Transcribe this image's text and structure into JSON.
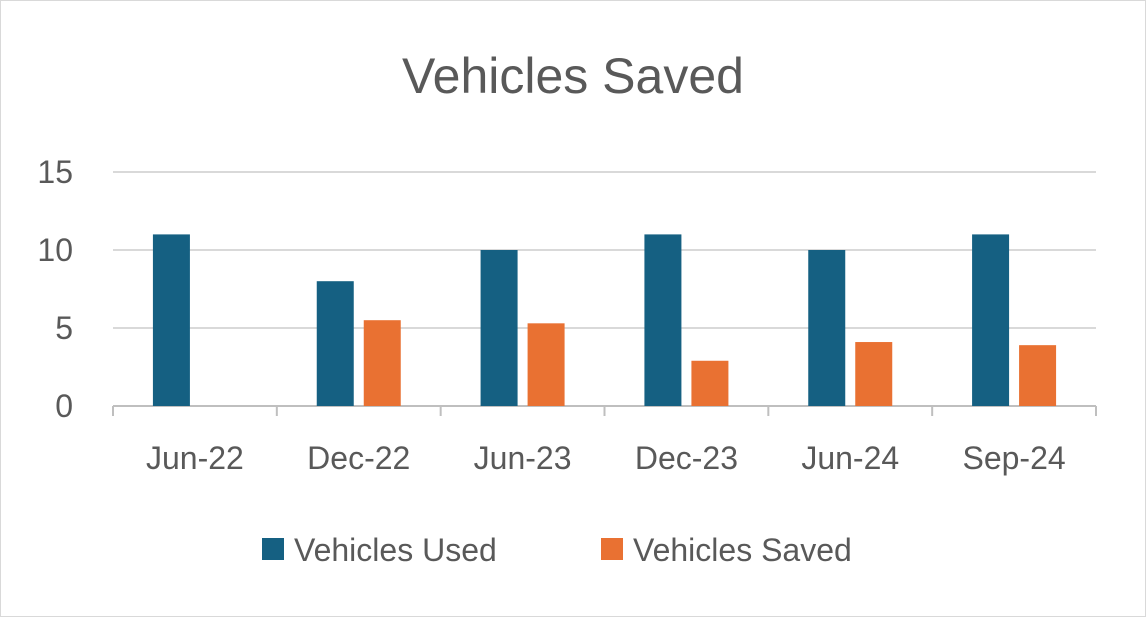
{
  "chart_data": {
    "type": "bar",
    "title": "Vehicles Saved",
    "categories": [
      "Jun-22",
      "Dec-22",
      "Jun-23",
      "Dec-23",
      "Jun-24",
      "Sep-24"
    ],
    "series": [
      {
        "name": "Vehicles Used",
        "color": "#156082",
        "values": [
          11,
          8,
          10,
          11,
          10,
          11
        ]
      },
      {
        "name": "Vehicles Saved",
        "color": "#E97132",
        "values": [
          0,
          5.5,
          5.3,
          2.9,
          4.1,
          3.9
        ]
      }
    ],
    "ylim": [
      0,
      15
    ],
    "yticks": [
      0,
      5,
      10,
      15
    ],
    "grid": true,
    "legend": "bottom",
    "xlabel": "",
    "ylabel": ""
  }
}
